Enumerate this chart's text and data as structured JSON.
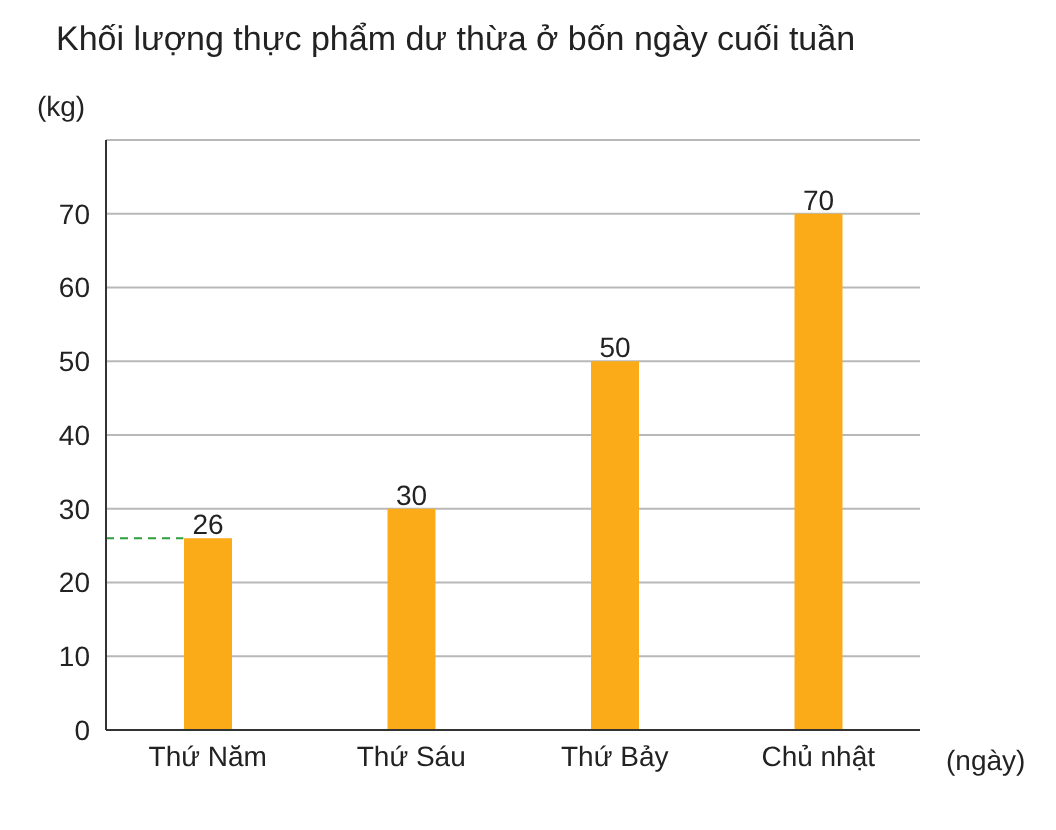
{
  "chart_data": {
    "type": "bar",
    "title": "Khối lượng thực phẩm dư thừa ở bốn ngày cuối tuần",
    "xlabel": "(ngày)",
    "ylabel": "(kg)",
    "categories": [
      "Thứ Năm",
      "Thứ Sáu",
      "Thứ Bảy",
      "Chủ nhật"
    ],
    "values": [
      26,
      30,
      50,
      70
    ],
    "color": "#fbab18",
    "ylim": [
      0,
      80
    ],
    "yticks": [
      0,
      10,
      20,
      30,
      40,
      50,
      60,
      70
    ],
    "grid": "y",
    "data_labels": true,
    "ref_lines": [
      {
        "axis": "y",
        "value": 26,
        "color": "#2e9e3e",
        "line_style": "dashed"
      }
    ]
  }
}
